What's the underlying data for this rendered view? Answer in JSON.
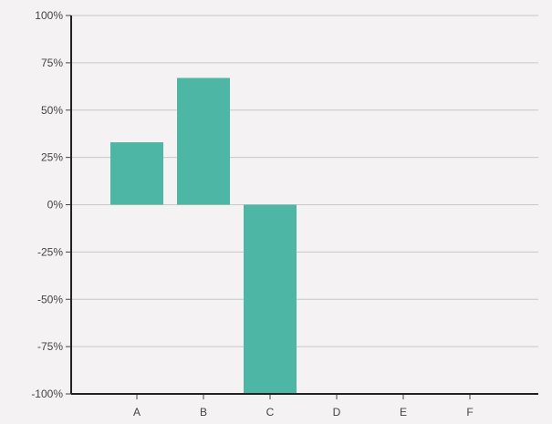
{
  "chart_data": {
    "type": "bar",
    "categories": [
      "A",
      "B",
      "C",
      "D",
      "E",
      "F"
    ],
    "values": [
      33,
      67,
      -100,
      0,
      0,
      0
    ],
    "ylim": [
      -100,
      100
    ],
    "y_ticks": [
      -100,
      -75,
      -50,
      -25,
      0,
      25,
      50,
      75,
      100
    ],
    "y_tick_labels": [
      "-100%",
      "-75%",
      "-50%",
      "-25%",
      "0%",
      "25%",
      "50%",
      "75%",
      "100%"
    ],
    "title": "",
    "xlabel": "",
    "ylabel": "",
    "grid": true,
    "bar_color": "#4db6a4"
  }
}
